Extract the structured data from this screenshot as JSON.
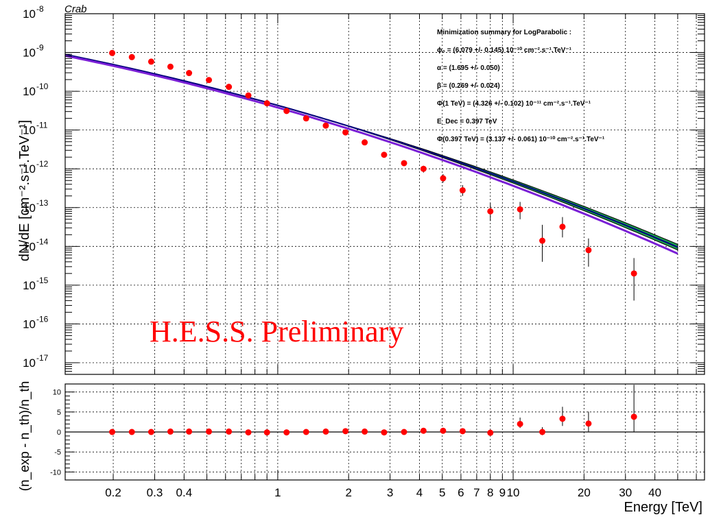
{
  "title": "Crab",
  "watermark": "H.E.S.S. Preliminary",
  "fit_summary": [
    "Minimization summary for LogParabolic :",
    "ϕ₀ = (6.079 +/- 0.145) 10⁻¹⁰ cm⁻².s⁻¹.TeV⁻¹",
    "α = (1.695 +/- 0.050)",
    "β = (0.269 +/- 0.024)",
    "Φ(1 TeV) = (4.326 +/- 0.102) 10⁻¹¹ cm⁻².s⁻¹.TeV⁻¹",
    "E_Dec = 0.397 TeV",
    "Φ(0.397 TeV) = (3.137 +/- 0.061) 10⁻¹⁰ cm⁻².s⁻¹.TeV⁻¹"
  ],
  "colors": {
    "points": "#ff0000",
    "band_fill": "#1e9e4a",
    "fit_line": "#000080",
    "model_line": "#7a1fd6",
    "watermark": "#ff0000"
  },
  "chart_data": [
    {
      "type": "scatter",
      "panel": "spectrum",
      "title": "Crab",
      "xlabel": "Energy [TeV]",
      "ylabel": "dN/dE [cm⁻².s⁻¹.TeV⁻¹]",
      "xscale": "log",
      "yscale": "log",
      "xlim": [
        0.125,
        65
      ],
      "ylim": [
        5e-18,
        1e-08
      ],
      "x_ticks": [
        0.2,
        0.3,
        0.4,
        1,
        2,
        3,
        4,
        5,
        6,
        7,
        8,
        9,
        10,
        20,
        30,
        40
      ],
      "x_tick_labels": [
        "0.2",
        "0.3",
        "0.4",
        "1",
        "2",
        "3",
        "4",
        "5",
        "6",
        "7",
        "8",
        "9",
        "10",
        "20",
        "30",
        "40"
      ],
      "y_ticks": [
        1e-17,
        1e-16,
        1e-15,
        1e-14,
        1e-13,
        1e-12,
        1e-11,
        1e-10,
        1e-09,
        1e-08
      ],
      "y_tick_exponents": [
        "-17",
        "-16",
        "-15",
        "-14",
        "-13",
        "-12",
        "-11",
        "-10",
        "-9",
        "-8"
      ],
      "grid": true,
      "points": [
        {
          "x": 0.198,
          "y": 9.7e-10,
          "err_lo": 0,
          "err_hi": 0
        },
        {
          "x": 0.24,
          "y": 7.6e-10,
          "err_lo": 0,
          "err_hi": 0
        },
        {
          "x": 0.29,
          "y": 5.8e-10,
          "err_lo": 0,
          "err_hi": 0
        },
        {
          "x": 0.35,
          "y": 4.3e-10,
          "err_lo": 0,
          "err_hi": 0
        },
        {
          "x": 0.42,
          "y": 2.95e-10,
          "err_lo": 0,
          "err_hi": 0
        },
        {
          "x": 0.51,
          "y": 1.95e-10,
          "err_lo": 0,
          "err_hi": 0
        },
        {
          "x": 0.62,
          "y": 1.3e-10,
          "err_lo": 0,
          "err_hi": 0
        },
        {
          "x": 0.75,
          "y": 7.8e-11,
          "err_lo": 0,
          "err_hi": 0
        },
        {
          "x": 0.9,
          "y": 4.9e-11,
          "err_lo": 0,
          "err_hi": 0
        },
        {
          "x": 1.09,
          "y": 3.1e-11,
          "err_lo": 0,
          "err_hi": 0
        },
        {
          "x": 1.32,
          "y": 2e-11,
          "err_lo": 0,
          "err_hi": 0
        },
        {
          "x": 1.6,
          "y": 1.3e-11,
          "err_lo": 0,
          "err_hi": 0
        },
        {
          "x": 1.94,
          "y": 8.7e-12,
          "err_lo": 0,
          "err_hi": 0
        },
        {
          "x": 2.34,
          "y": 4.8e-12,
          "err_lo": 0,
          "err_hi": 0
        },
        {
          "x": 2.83,
          "y": 2.3e-12,
          "err_lo": 0,
          "err_hi": 0
        },
        {
          "x": 3.44,
          "y": 1.4e-12,
          "err_lo": 0,
          "err_hi": 0
        },
        {
          "x": 4.16,
          "y": 1e-12,
          "err_lo": 2e-13,
          "err_hi": 2e-13
        },
        {
          "x": 5.04,
          "y": 5.7e-13,
          "err_lo": 1.3e-13,
          "err_hi": 1.6e-13
        },
        {
          "x": 6.1,
          "y": 2.8e-13,
          "err_lo": 8e-14,
          "err_hi": 1e-13
        },
        {
          "x": 8.0,
          "y": 8e-14,
          "err_lo": 3.5e-14,
          "err_hi": 5e-14
        },
        {
          "x": 10.7,
          "y": 9e-14,
          "err_lo": 4e-14,
          "err_hi": 5e-14
        },
        {
          "x": 13.3,
          "y": 1.4e-14,
          "err_lo": 1e-14,
          "err_hi": 2.2e-14
        },
        {
          "x": 16.2,
          "y": 3.2e-14,
          "err_lo": 1.5e-14,
          "err_hi": 2.5e-14
        },
        {
          "x": 20.9,
          "y": 8e-15,
          "err_lo": 5e-15,
          "err_hi": 8e-15
        },
        {
          "x": 32.6,
          "y": 2e-15,
          "err_lo": 1.6e-15,
          "err_hi": 3e-15
        }
      ],
      "fit": {
        "model": "LogParabolic",
        "phi0": 6.079e-10,
        "alpha": 1.695,
        "beta": 0.269,
        "e_min": 0.125,
        "e_max": 50
      }
    },
    {
      "type": "scatter",
      "panel": "residuals",
      "xlabel": "Energy [TeV]",
      "ylabel": "(n_exp - n_th)/n_th",
      "xscale": "log",
      "xlim": [
        0.125,
        65
      ],
      "ylim": [
        -12,
        12
      ],
      "y_ticks": [
        -10,
        -5,
        0,
        5,
        10
      ],
      "y_tick_labels": [
        "-10",
        "-5",
        "0",
        "5",
        "10"
      ],
      "grid": true,
      "points": [
        {
          "x": 0.198,
          "y": 0.0,
          "err_lo": 0,
          "err_hi": 0
        },
        {
          "x": 0.24,
          "y": 0.0,
          "err_lo": 0,
          "err_hi": 0
        },
        {
          "x": 0.29,
          "y": 0.0,
          "err_lo": 0,
          "err_hi": 0
        },
        {
          "x": 0.35,
          "y": 0.1,
          "err_lo": 0,
          "err_hi": 0
        },
        {
          "x": 0.42,
          "y": 0.1,
          "err_lo": 0,
          "err_hi": 0
        },
        {
          "x": 0.51,
          "y": 0.1,
          "err_lo": 0,
          "err_hi": 0
        },
        {
          "x": 0.62,
          "y": 0.1,
          "err_lo": 0,
          "err_hi": 0
        },
        {
          "x": 0.75,
          "y": -0.1,
          "err_lo": 0,
          "err_hi": 0
        },
        {
          "x": 0.9,
          "y": -0.1,
          "err_lo": 0,
          "err_hi": 0
        },
        {
          "x": 1.09,
          "y": -0.1,
          "err_lo": 0,
          "err_hi": 0
        },
        {
          "x": 1.32,
          "y": 0.0,
          "err_lo": 0,
          "err_hi": 0
        },
        {
          "x": 1.6,
          "y": 0.1,
          "err_lo": 0,
          "err_hi": 0
        },
        {
          "x": 1.94,
          "y": 0.2,
          "err_lo": 0,
          "err_hi": 0
        },
        {
          "x": 2.34,
          "y": 0.1,
          "err_lo": 0,
          "err_hi": 0
        },
        {
          "x": 2.83,
          "y": -0.1,
          "err_lo": 0,
          "err_hi": 0
        },
        {
          "x": 3.44,
          "y": 0.0,
          "err_lo": 0,
          "err_hi": 0
        },
        {
          "x": 4.16,
          "y": 0.3,
          "err_lo": 0.2,
          "err_hi": 0.2
        },
        {
          "x": 5.04,
          "y": 0.3,
          "err_lo": 0.3,
          "err_hi": 0.3
        },
        {
          "x": 6.1,
          "y": 0.2,
          "err_lo": 0.3,
          "err_hi": 0.3
        },
        {
          "x": 8.0,
          "y": -0.2,
          "err_lo": 0.5,
          "err_hi": 0.5
        },
        {
          "x": 10.7,
          "y": 2.0,
          "err_lo": 1.0,
          "err_hi": 1.6
        },
        {
          "x": 13.3,
          "y": 0.0,
          "err_lo": 0.8,
          "err_hi": 1.2
        },
        {
          "x": 16.2,
          "y": 3.3,
          "err_lo": 1.8,
          "err_hi": 3.0
        },
        {
          "x": 20.9,
          "y": 2.1,
          "err_lo": 2.0,
          "err_hi": 3.0
        },
        {
          "x": 32.6,
          "y": 3.8,
          "err_lo": 3.8,
          "err_hi": 8.0
        }
      ]
    }
  ]
}
